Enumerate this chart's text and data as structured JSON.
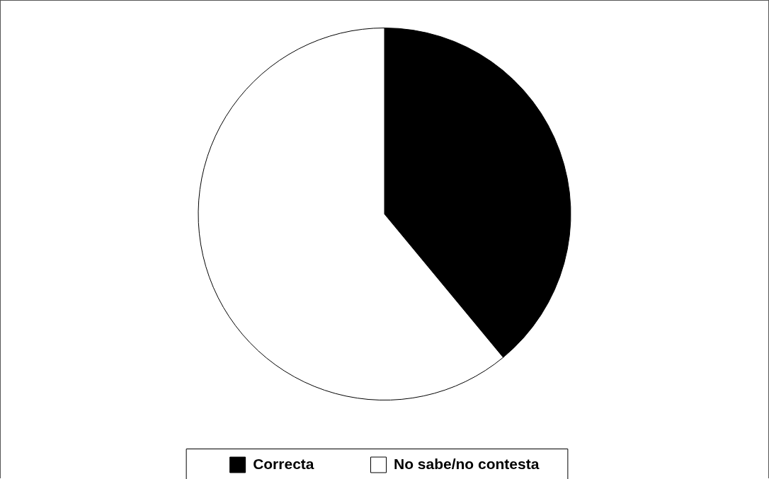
{
  "chart_data": {
    "type": "pie",
    "categories": [
      "Correcta",
      "No sabe/no contesta"
    ],
    "values": [
      39,
      61
    ],
    "colors": [
      "#000000",
      "#ffffff"
    ],
    "legend": "bottom"
  }
}
